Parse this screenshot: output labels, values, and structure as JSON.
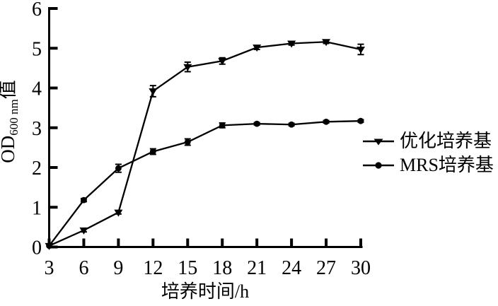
{
  "figure": {
    "background": "#ffffff",
    "ink_color": "#000000"
  },
  "chart_data": {
    "type": "line",
    "title": "",
    "xlabel": "培养时间/h",
    "ylabel_parts": {
      "prefix": "OD",
      "subscript": "600 nm",
      "suffix": "值"
    },
    "x": [
      3,
      6,
      9,
      12,
      15,
      18,
      21,
      24,
      27,
      30
    ],
    "x_ticks": [
      3,
      6,
      9,
      12,
      15,
      18,
      21,
      24,
      27,
      30
    ],
    "y_ticks": [
      0,
      1,
      2,
      3,
      4,
      5,
      6
    ],
    "xlim": [
      3,
      30
    ],
    "ylim": [
      0,
      6
    ],
    "grid": false,
    "error_bars": true,
    "legend_position": "right-middle",
    "series": [
      {
        "name": "优化培养基",
        "marker": "triangle-down",
        "color": "#000000",
        "values": [
          0.03,
          0.42,
          0.87,
          3.92,
          4.53,
          4.68,
          5.02,
          5.12,
          5.16,
          4.97
        ],
        "errors": [
          0,
          0.04,
          0.04,
          0.14,
          0.12,
          0.08,
          0.05,
          0.04,
          0.04,
          0.13
        ]
      },
      {
        "name": "MRS培养基",
        "marker": "circle",
        "color": "#000000",
        "values": [
          0.03,
          1.18,
          1.98,
          2.4,
          2.64,
          3.06,
          3.1,
          3.08,
          3.15,
          3.17
        ],
        "errors": [
          0,
          0.04,
          0.1,
          0.07,
          0.08,
          0.06,
          0.03,
          0.03,
          0.03,
          0.03
        ]
      }
    ]
  }
}
